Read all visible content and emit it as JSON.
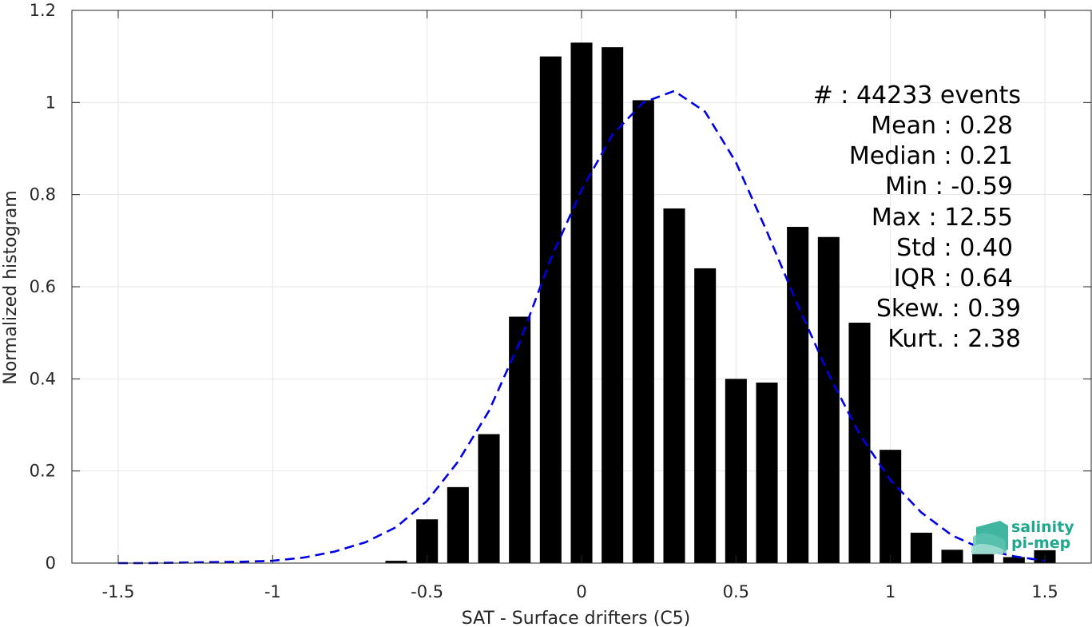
{
  "chart_data": {
    "type": "bar",
    "xlabel": "SAT - Surface drifters (C5)",
    "ylabel": "Normalized histogram",
    "xlim": [
      -1.65,
      1.65
    ],
    "ylim": [
      0,
      1.2
    ],
    "xticks": [
      -1.5,
      -1,
      -0.5,
      0,
      0.5,
      1,
      1.5
    ],
    "xtick_labels": [
      "-1.5",
      "-1",
      "-0.5",
      "0",
      "0.5",
      "1",
      "1.5"
    ],
    "yticks": [
      0,
      0.2,
      0.4,
      0.6,
      0.8,
      1,
      1.2
    ],
    "ytick_labels": [
      "0",
      "0.2",
      "0.4",
      "0.6",
      "0.8",
      "1",
      "1.2"
    ],
    "grid": true,
    "bar_color": "#000000",
    "bars": {
      "x": [
        -0.6,
        -0.5,
        -0.4,
        -0.3,
        -0.2,
        -0.1,
        0.0,
        0.1,
        0.2,
        0.3,
        0.4,
        0.5,
        0.6,
        0.7,
        0.8,
        0.9,
        1.0,
        1.1,
        1.2,
        1.3,
        1.4,
        1.5
      ],
      "values": [
        0.005,
        0.095,
        0.165,
        0.28,
        0.535,
        1.1,
        1.13,
        1.12,
        1.005,
        0.77,
        0.64,
        0.4,
        0.392,
        0.73,
        0.708,
        0.522,
        0.246,
        0.066,
        0.029,
        0.022,
        0.013,
        0.028
      ]
    },
    "fit_curve": {
      "style": "dashed",
      "color": "#0000e6",
      "x": [
        -1.5,
        -1.4,
        -1.3,
        -1.2,
        -1.1,
        -1.0,
        -0.9,
        -0.8,
        -0.7,
        -0.6,
        -0.5,
        -0.4,
        -0.3,
        -0.2,
        -0.1,
        0.0,
        0.1,
        0.2,
        0.3,
        0.4,
        0.5,
        0.6,
        0.7,
        0.8,
        0.9,
        1.0,
        1.1,
        1.2,
        1.3,
        1.4,
        1.5
      ],
      "y": [
        0.0,
        0.0,
        0.001,
        0.002,
        0.003,
        0.005,
        0.012,
        0.025,
        0.045,
        0.078,
        0.135,
        0.22,
        0.33,
        0.48,
        0.66,
        0.81,
        0.93,
        1.0,
        1.025,
        0.98,
        0.87,
        0.72,
        0.56,
        0.41,
        0.28,
        0.18,
        0.11,
        0.06,
        0.03,
        0.015,
        0.005
      ]
    }
  },
  "stats": {
    "count": "#  : 44233 events",
    "mean": "Mean : 0.28",
    "median": "Median : 0.21",
    "min": "Min : -0.59",
    "max": "Max : 12.55",
    "std": "Std : 0.40",
    "iqr": "IQR : 0.64",
    "skew": "Skew. : 0.39",
    "kurt": "Kurt. : 2.38"
  },
  "logo": {
    "line1": "salinity",
    "line2": "pi-mep",
    "color": "#1fa88e"
  }
}
